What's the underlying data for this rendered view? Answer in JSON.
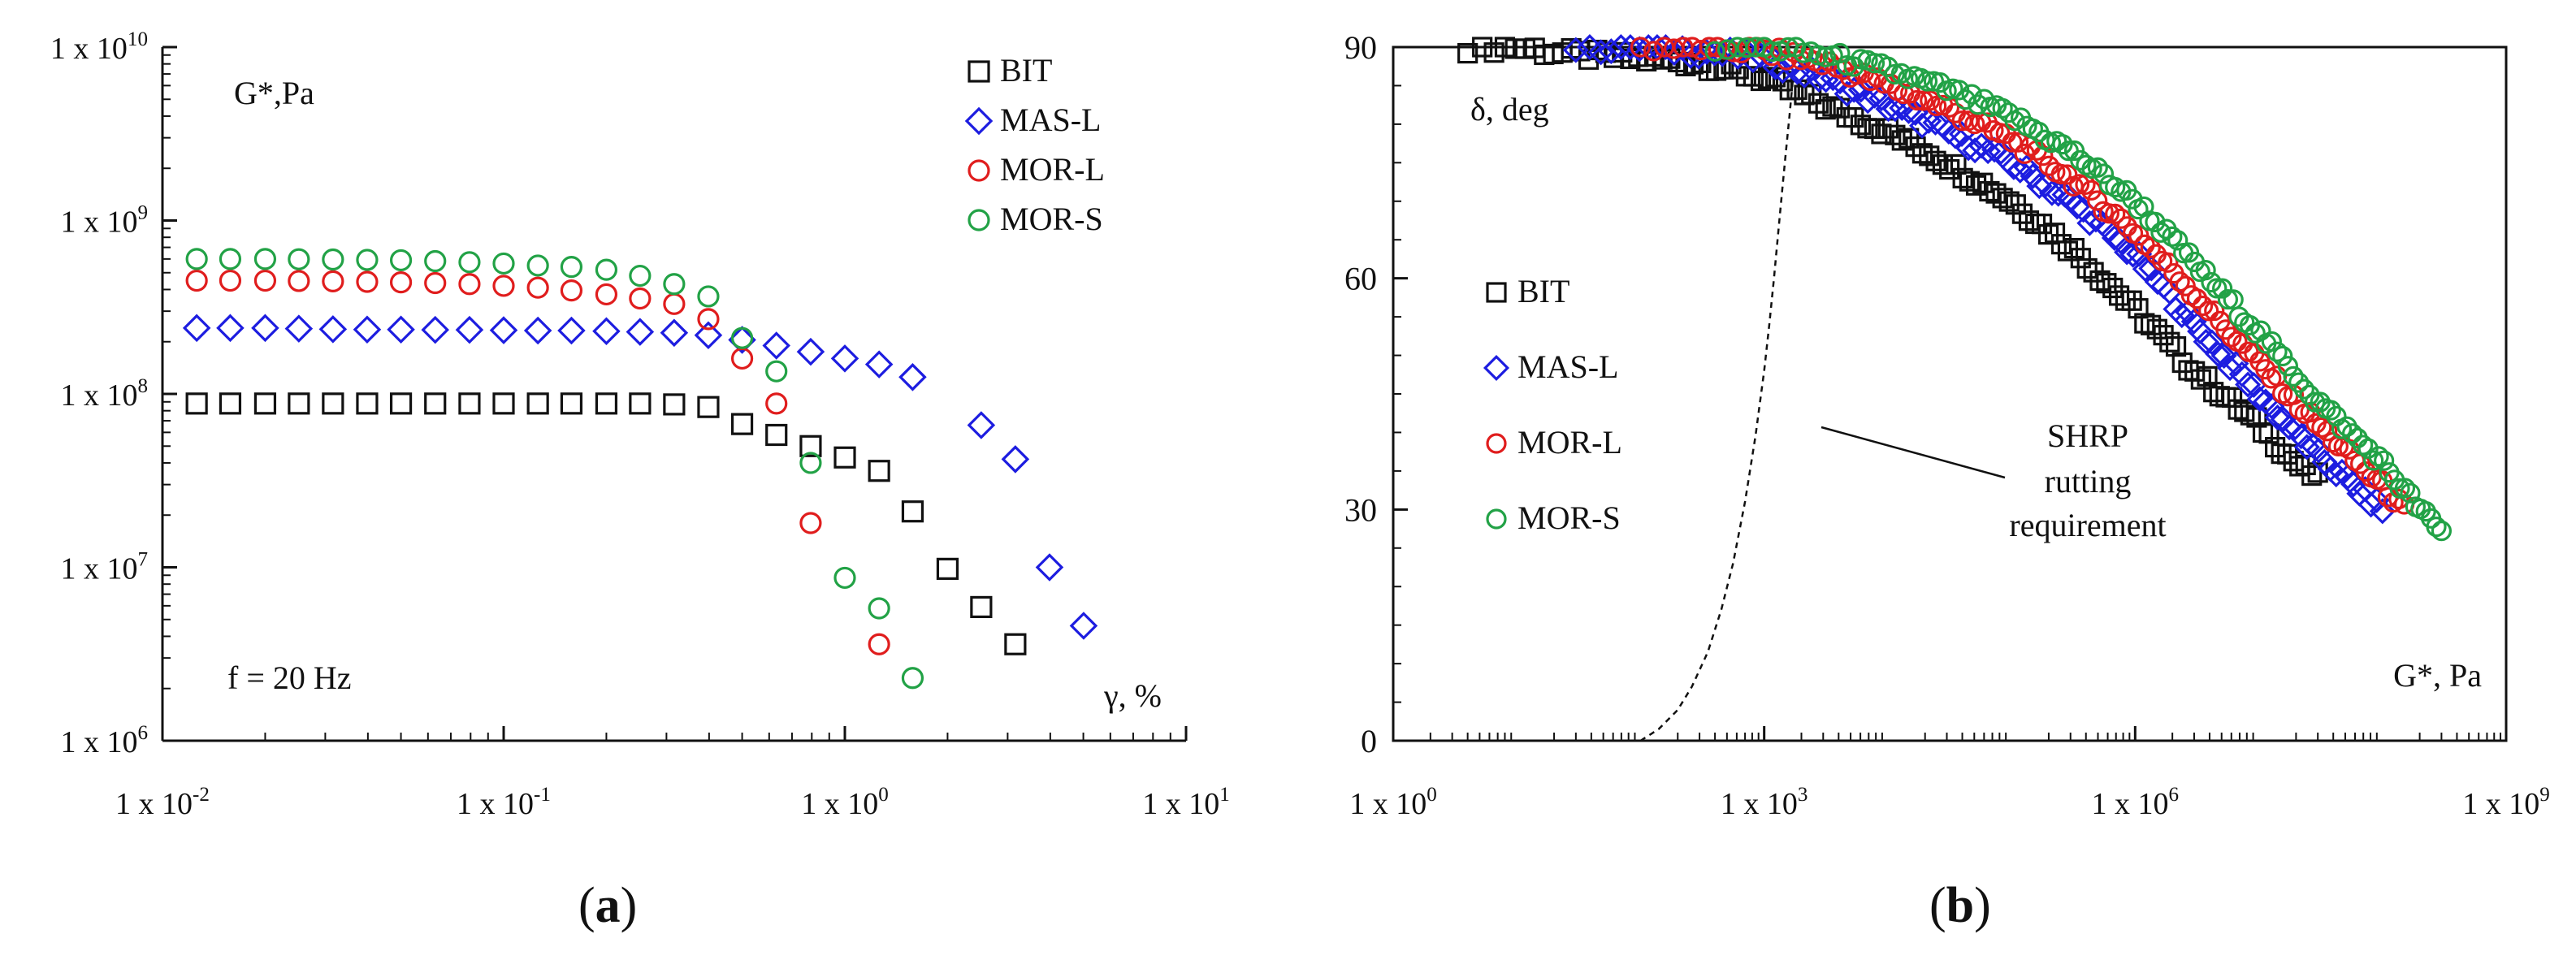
{
  "chart_data": [
    {
      "type": "scatter",
      "panel_label": "a",
      "xscale": "log",
      "yscale": "log",
      "xlim": [
        0.01,
        10
      ],
      "ylim": [
        1000000,
        10000000000
      ],
      "x_ticks": [
        {
          "value": 0.01,
          "base": "1 x 10",
          "exp": "-2"
        },
        {
          "value": 0.1,
          "base": "1 x 10",
          "exp": "-1"
        },
        {
          "value": 1,
          "base": "1 x 10",
          "exp": "0"
        },
        {
          "value": 10,
          "base": "1 x 10",
          "exp": "1"
        }
      ],
      "y_ticks": [
        {
          "value": 1000000,
          "base": "1 x 10",
          "exp": "6"
        },
        {
          "value": 10000000,
          "base": "1 x 10",
          "exp": "7"
        },
        {
          "value": 100000000,
          "base": "1 x 10",
          "exp": "8"
        },
        {
          "value": 1000000000,
          "base": "1 x 10",
          "exp": "9"
        },
        {
          "value": 10000000000,
          "base": "1 x 10",
          "exp": "10"
        }
      ],
      "ylabel": "G*,Pa",
      "xlabel": "γ, %",
      "annotation": "f = 20 Hz",
      "legend_position": "top-right",
      "series": [
        {
          "name": "BIT",
          "marker": "square",
          "color": "#111111",
          "x": [
            0.0126,
            0.0158,
            0.02,
            0.0251,
            0.0316,
            0.0398,
            0.05,
            0.063,
            0.0794,
            0.1,
            0.126,
            0.158,
            0.2,
            0.251,
            0.316,
            0.398,
            0.5,
            0.63,
            0.794,
            1.0,
            1.26,
            1.58,
            2.0,
            2.51,
            3.16
          ],
          "y": [
            88000000,
            88000000,
            88000000,
            88000000,
            88000000,
            88000000,
            88000000,
            88000000,
            88000000,
            88000000,
            88000000,
            88000000,
            88000000,
            88000000,
            87000000,
            84000000,
            67000000,
            58000000,
            50000000,
            43000000,
            36000000,
            21000000,
            9800000,
            5900000,
            3600000
          ]
        },
        {
          "name": "MAS-L",
          "marker": "diamond",
          "color": "#1d1de0",
          "x": [
            0.0126,
            0.0158,
            0.02,
            0.0251,
            0.0316,
            0.0398,
            0.05,
            0.063,
            0.0794,
            0.1,
            0.126,
            0.158,
            0.2,
            0.251,
            0.316,
            0.398,
            0.5,
            0.63,
            0.794,
            1.0,
            1.26,
            1.58,
            2.51,
            3.16,
            3.98,
            5.01
          ],
          "y": [
            240000000,
            240000000,
            240000000,
            238000000,
            236000000,
            235000000,
            235000000,
            234000000,
            234000000,
            233000000,
            232000000,
            232000000,
            230000000,
            228000000,
            225000000,
            218000000,
            205000000,
            190000000,
            175000000,
            160000000,
            148000000,
            125000000,
            66000000,
            42000000,
            10000000,
            4600000
          ]
        },
        {
          "name": "MOR-L",
          "marker": "circle",
          "color": "#e01d1d",
          "x": [
            0.0126,
            0.0158,
            0.02,
            0.0251,
            0.0316,
            0.0398,
            0.05,
            0.063,
            0.0794,
            0.1,
            0.126,
            0.158,
            0.2,
            0.251,
            0.316,
            0.398,
            0.5,
            0.63,
            0.794,
            1.26
          ],
          "y": [
            450000000,
            450000000,
            450000000,
            448000000,
            446000000,
            443000000,
            440000000,
            436000000,
            430000000,
            420000000,
            410000000,
            395000000,
            375000000,
            355000000,
            330000000,
            270000000,
            160000000,
            88000000,
            18000000,
            3600000
          ]
        },
        {
          "name": "MOR-S",
          "marker": "circle",
          "color": "#22a246",
          "x": [
            0.0126,
            0.0158,
            0.02,
            0.0251,
            0.0316,
            0.0398,
            0.05,
            0.063,
            0.0794,
            0.1,
            0.126,
            0.158,
            0.2,
            0.251,
            0.316,
            0.398,
            0.5,
            0.63,
            0.794,
            1.0,
            1.26,
            1.58
          ],
          "y": [
            600000000,
            600000000,
            600000000,
            598000000,
            596000000,
            593000000,
            590000000,
            583000000,
            575000000,
            565000000,
            550000000,
            540000000,
            520000000,
            480000000,
            430000000,
            365000000,
            210000000,
            135000000,
            40000000,
            8700000,
            5800000,
            2300000
          ]
        }
      ]
    },
    {
      "type": "scatter",
      "panel_label": "b",
      "xscale": "log",
      "yscale": "linear",
      "xlim": [
        1,
        1000000000
      ],
      "ylim": [
        0,
        90
      ],
      "x_ticks": [
        {
          "value": 1,
          "base": "1 x 10",
          "exp": "0"
        },
        {
          "value": 1000,
          "base": "1 x 10",
          "exp": "3"
        },
        {
          "value": 1000000,
          "base": "1 x 10",
          "exp": "6"
        },
        {
          "value": 1000000000,
          "base": "1 x 10",
          "exp": "9"
        }
      ],
      "y_ticks": [
        0,
        30,
        60,
        90
      ],
      "ylabel": "δ, deg",
      "xlabel": "G*, Pa",
      "legend_position": "middle-left",
      "annotation": [
        "SHRP",
        "rutting",
        "requirement"
      ],
      "reference_curve": {
        "name": "SHRP rutting requirement",
        "style": "dashed",
        "x": [
          100,
          140,
          200,
          260,
          350,
          450,
          560,
          700,
          850,
          1000,
          1100,
          1200,
          1300,
          1400,
          1500,
          1600,
          1700,
          1800
        ],
        "y": [
          0,
          1.5,
          4,
          7,
          11.5,
          17,
          23,
          31,
          39.5,
          48,
          54,
          60,
          66,
          71.5,
          76.5,
          81,
          85.5,
          90
        ]
      },
      "series": [
        {
          "name": "BIT",
          "marker": "square",
          "color": "#111111",
          "curve": [
            [
              4,
              90
            ],
            [
              10,
              90
            ],
            [
              30,
              89
            ],
            [
              100,
              88.5
            ],
            [
              300,
              88
            ],
            [
              1000,
              86
            ],
            [
              3000,
              82.5
            ],
            [
              10000,
              79
            ],
            [
              30000,
              75
            ],
            [
              100000,
              70
            ],
            [
              300000,
              64
            ],
            [
              1000000,
              56
            ],
            [
              3000000,
              48
            ],
            [
              10000000,
              41
            ],
            [
              20000000,
              36
            ],
            [
              30000000,
              34
            ]
          ]
        },
        {
          "name": "MAS-L",
          "marker": "diamond",
          "color": "#1d1de0",
          "curve": [
            [
              30,
              90
            ],
            [
              100,
              90
            ],
            [
              300,
              89.5
            ],
            [
              1000,
              88.5
            ],
            [
              3000,
              86
            ],
            [
              10000,
              82.5
            ],
            [
              30000,
              79
            ],
            [
              100000,
              75
            ],
            [
              300000,
              70
            ],
            [
              1000000,
              63
            ],
            [
              3000000,
              54
            ],
            [
              10000000,
              45
            ],
            [
              30000000,
              37
            ],
            [
              100000000,
              30
            ]
          ]
        },
        {
          "name": "MOR-L",
          "marker": "circle",
          "color": "#e01d1d",
          "curve": [
            [
              100,
              90
            ],
            [
              300,
              90
            ],
            [
              1000,
              89.5
            ],
            [
              3000,
              88
            ],
            [
              10000,
              85
            ],
            [
              30000,
              82
            ],
            [
              100000,
              78
            ],
            [
              300000,
              73
            ],
            [
              1000000,
              66
            ],
            [
              3000000,
              58
            ],
            [
              10000000,
              49
            ],
            [
              30000000,
              41
            ],
            [
              100000000,
              33
            ],
            [
              150000000,
              30
            ]
          ]
        },
        {
          "name": "MOR-S",
          "marker": "circle",
          "color": "#22a246",
          "curve": [
            [
              400,
              90
            ],
            [
              1000,
              90
            ],
            [
              3000,
              89
            ],
            [
              10000,
              87
            ],
            [
              30000,
              84.5
            ],
            [
              100000,
              81
            ],
            [
              300000,
              76.5
            ],
            [
              1000000,
              70
            ],
            [
              3000000,
              62
            ],
            [
              10000000,
              53
            ],
            [
              30000000,
              44
            ],
            [
              100000000,
              36
            ],
            [
              200000000,
              30
            ],
            [
              300000000,
              27
            ]
          ]
        }
      ]
    }
  ]
}
